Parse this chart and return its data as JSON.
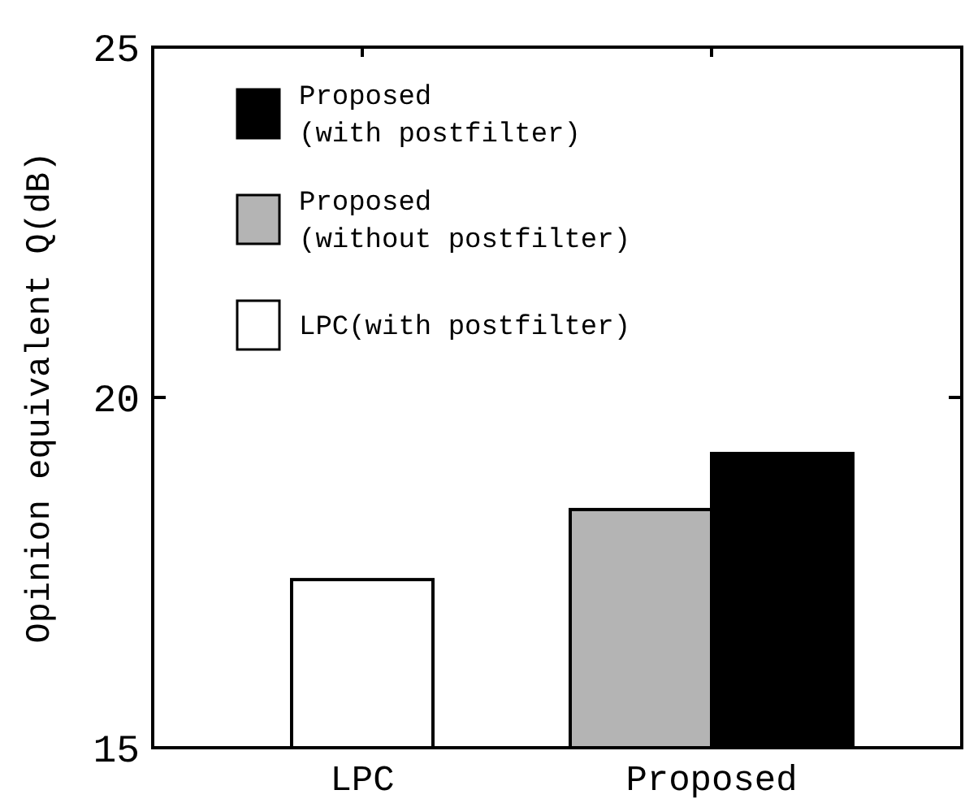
{
  "chart_data": {
    "type": "bar",
    "ylabel": "Opinion equivalent Q(dB)",
    "categories": [
      "LPC",
      "Proposed"
    ],
    "series": [
      {
        "name": "LPC(with postfilter)",
        "color": "#ffffff",
        "values": [
          17.4,
          null
        ]
      },
      {
        "name": "Proposed\n(without postfilter)",
        "color": "#b4b4b4",
        "values": [
          null,
          18.4
        ]
      },
      {
        "name": "Proposed\n(with postfilter)",
        "color": "#000000",
        "values": [
          null,
          19.2
        ]
      }
    ],
    "ylim": [
      15,
      25
    ],
    "yticks": [
      15,
      20,
      25
    ],
    "grid": false,
    "legend": "top left"
  }
}
